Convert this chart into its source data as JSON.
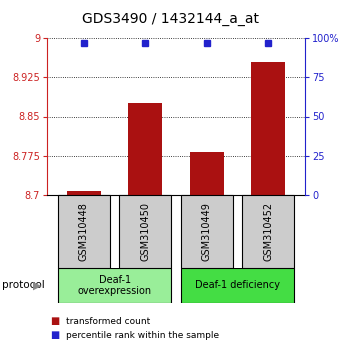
{
  "title": "GDS3490 / 1432144_a_at",
  "samples": [
    "GSM310448",
    "GSM310450",
    "GSM310449",
    "GSM310452"
  ],
  "bar_values": [
    8.708,
    8.875,
    8.782,
    8.955
  ],
  "percentile_values": [
    97,
    97,
    97,
    97
  ],
  "ylim_left": [
    8.7,
    9.0
  ],
  "ylim_right": [
    0,
    100
  ],
  "yticks_left": [
    8.7,
    8.775,
    8.85,
    8.925,
    9.0
  ],
  "ytick_labels_left": [
    "8.7",
    "8.775",
    "8.85",
    "8.925",
    "9"
  ],
  "yticks_right": [
    0,
    25,
    50,
    75,
    100
  ],
  "ytick_labels_right": [
    "0",
    "25",
    "50",
    "75",
    "100%"
  ],
  "bar_color": "#aa1111",
  "percentile_color": "#2222cc",
  "bar_bottom": 8.7,
  "groups": [
    {
      "label": "Deaf-1\noverexpression",
      "samples": [
        0,
        1
      ],
      "color": "#99ee99"
    },
    {
      "label": "Deaf-1 deficiency",
      "samples": [
        2,
        3
      ],
      "color": "#44dd44"
    }
  ],
  "protocol_label": "protocol",
  "legend_bar_label": "transformed count",
  "legend_percentile_label": "percentile rank within the sample",
  "title_color": "#000000",
  "left_axis_color": "#cc2222",
  "right_axis_color": "#2222cc",
  "sample_box_color": "#cccccc",
  "background_color": "#ffffff"
}
